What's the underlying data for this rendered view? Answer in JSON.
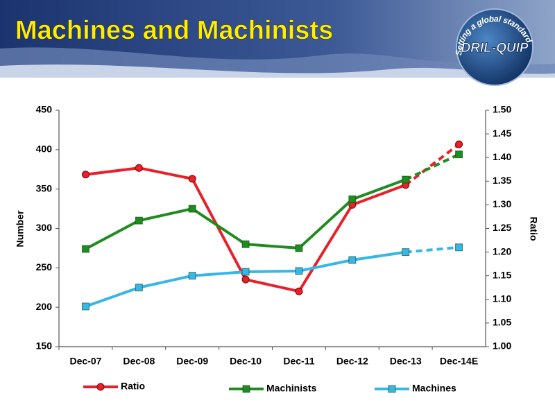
{
  "logo": {
    "name": "DRIL-QUIP",
    "tagline": "Setting a global standard"
  },
  "chart_data": {
    "type": "line",
    "title": "Machines and Machinists",
    "categories": [
      "Dec-07",
      "Dec-08",
      "Dec-09",
      "Dec-10",
      "Dec-11",
      "Dec-12",
      "Dec-13",
      "Dec-14E"
    ],
    "y_label": "Number",
    "y2_label": "Ratio",
    "ylim": [
      150,
      450
    ],
    "yticks": [
      150,
      200,
      250,
      300,
      350,
      400,
      450
    ],
    "y2lim": [
      1.0,
      1.5
    ],
    "y2ticks": [
      {
        "value": 1.0,
        "label": "1.00"
      },
      1.05,
      {
        "value": 1.1,
        "label": "1.10"
      },
      1.15,
      {
        "value": 1.2,
        "label": "1.20"
      },
      1.25,
      {
        "value": 1.3,
        "label": "1.30"
      },
      1.35,
      {
        "value": 1.4,
        "label": "1.40"
      },
      1.45,
      {
        "value": 1.5,
        "label": "1.50"
      }
    ],
    "dashed_last_segment": true,
    "series": [
      {
        "name": "Ratio",
        "color": "#e8202a",
        "marker": "circle",
        "axis": "y2",
        "values": [
          1.364,
          1.378,
          1.355,
          1.142,
          1.117,
          1.3,
          1.342,
          1.428
        ]
      },
      {
        "name": "Machinists",
        "color": "#1e8c1e",
        "marker": "square",
        "values": [
          274,
          310,
          325,
          280,
          275,
          337,
          362,
          394
        ]
      },
      {
        "name": "Machines",
        "color": "#38b6e6",
        "marker": "square",
        "values": [
          201,
          225,
          240,
          245,
          246,
          260,
          270,
          276
        ]
      }
    ]
  }
}
